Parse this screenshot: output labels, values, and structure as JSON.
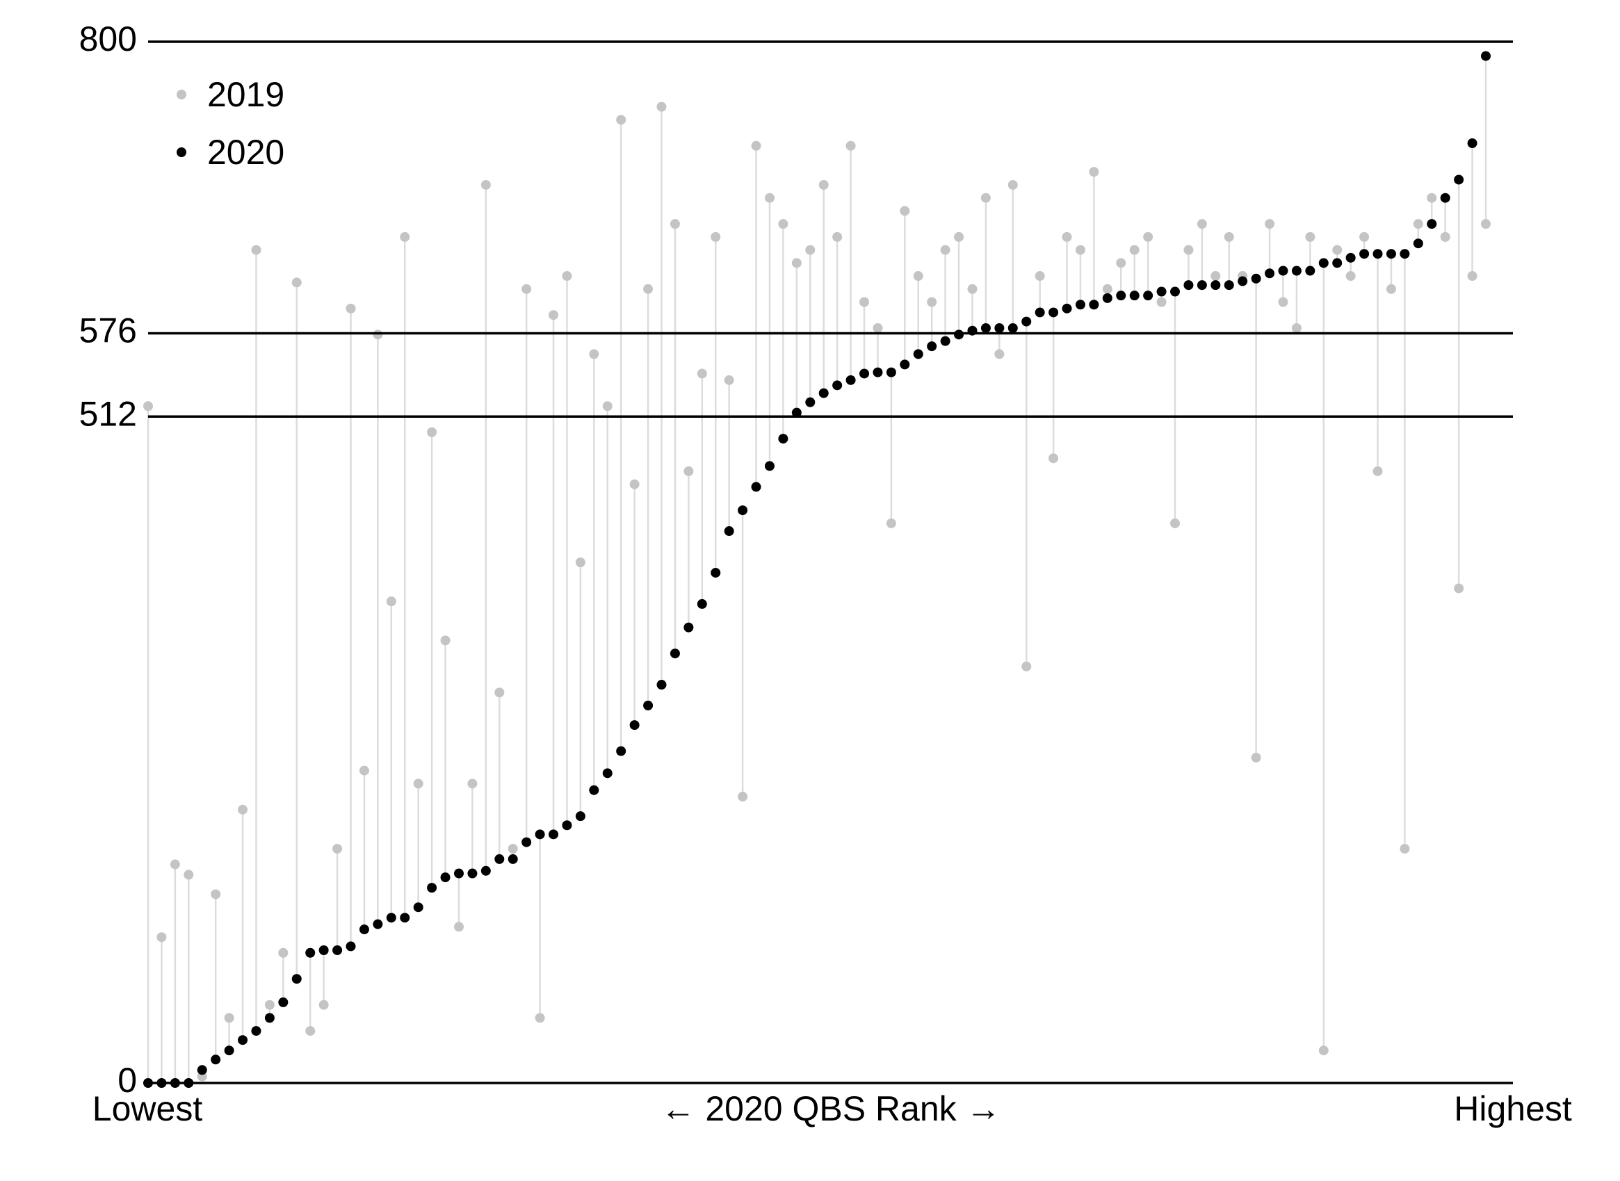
{
  "chart_data": {
    "type": "lollipop",
    "xlabel": "← 2020 QBS Rank →",
    "x_start_label": "Lowest",
    "x_end_label": "Highest",
    "ylim": [
      0,
      800
    ],
    "yticks": [
      0,
      512,
      576,
      800
    ],
    "grid": true,
    "series": [
      {
        "name": "2019",
        "color": "#c4c4c4",
        "values": [
          520,
          112,
          168,
          160,
          5,
          145,
          50,
          210,
          640,
          60,
          100,
          615,
          40,
          60,
          180,
          595,
          240,
          575,
          370,
          650,
          230,
          500,
          340,
          120,
          230,
          690,
          300,
          180,
          610,
          50,
          590,
          620,
          400,
          560,
          520,
          740,
          460,
          610,
          750,
          660,
          470,
          545,
          650,
          540,
          220,
          720,
          680,
          660,
          630,
          640,
          690,
          650,
          720,
          600,
          580,
          430,
          670,
          620,
          600,
          640,
          650,
          610,
          680,
          560,
          690,
          320,
          620,
          480,
          650,
          640,
          700,
          610,
          630,
          640,
          650,
          600,
          430,
          640,
          660,
          620,
          650,
          620,
          250,
          660,
          600,
          580,
          650,
          25,
          640,
          620,
          650,
          470,
          610,
          180,
          660,
          680,
          650,
          380,
          620,
          660
        ]
      },
      {
        "name": "2020",
        "color": "#000000",
        "values": [
          0,
          0,
          0,
          0,
          10,
          18,
          25,
          33,
          40,
          50,
          62,
          80,
          100,
          102,
          102,
          105,
          118,
          122,
          127,
          127,
          135,
          150,
          158,
          161,
          161,
          163,
          172,
          172,
          185,
          191,
          191,
          198,
          205,
          225,
          238,
          255,
          275,
          290,
          306,
          330,
          350,
          368,
          392,
          424,
          440,
          458,
          474,
          495,
          515,
          523,
          530,
          536,
          540,
          545,
          546,
          546,
          552,
          560,
          566,
          570,
          575,
          578,
          580,
          580,
          580,
          585,
          592,
          592,
          595,
          598,
          598,
          603,
          605,
          605,
          605,
          608,
          608,
          613,
          613,
          613,
          613,
          616,
          618,
          622,
          624,
          624,
          624,
          630,
          630,
          634,
          637,
          637,
          637,
          637,
          645,
          660,
          680,
          694,
          722,
          789
        ]
      }
    ]
  }
}
